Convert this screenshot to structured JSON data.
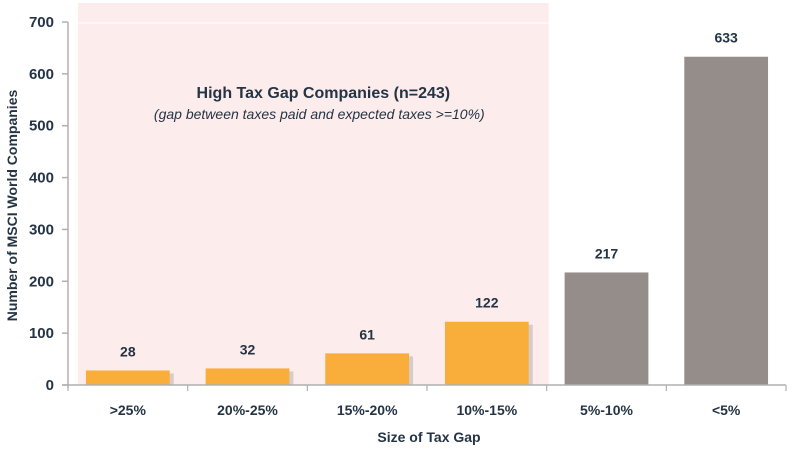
{
  "chart_data": {
    "type": "bar",
    "title": "",
    "xlabel": "Size of Tax Gap",
    "ylabel": "Number of MSCI World Companies",
    "categories": [
      ">25%",
      "20%-25%",
      "15%-20%",
      "10%-15%",
      "5%-10%",
      "<5%"
    ],
    "values": [
      28,
      32,
      61,
      122,
      217,
      633
    ],
    "groups": [
      "high",
      "high",
      "high",
      "high",
      "low",
      "low"
    ],
    "ylim": [
      0,
      700
    ],
    "yticks": [
      0,
      100,
      200,
      300,
      400,
      500,
      600,
      700
    ],
    "grid": false,
    "legend": "none",
    "colors": {
      "high": "#F9AD3A",
      "low": "#958D8A",
      "highlight_region": "#FDECEC",
      "axis": "#B0B0B0",
      "text": "#243444"
    },
    "highlight_region": {
      "categories": [
        ">25%",
        "20%-25%",
        "15%-20%",
        "10%-15%"
      ],
      "title": "High Tax Gap Companies (n=243)",
      "subtitle": "(gap between taxes paid and expected taxes >=10%)"
    }
  }
}
